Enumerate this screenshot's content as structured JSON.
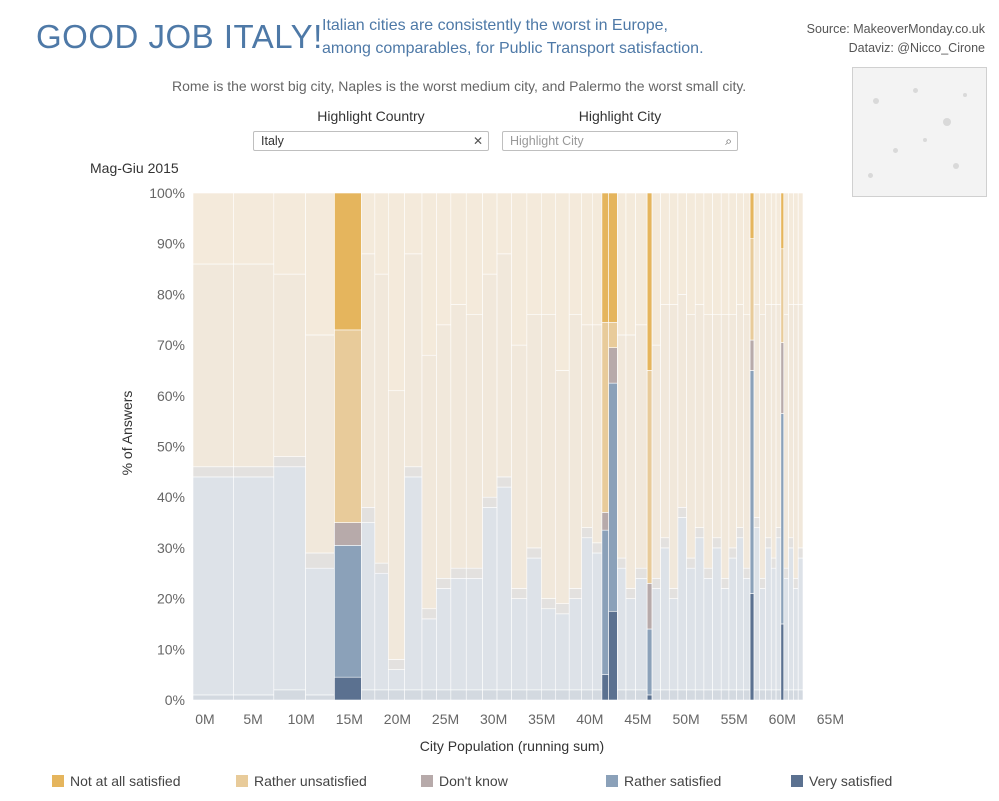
{
  "header": {
    "title": "GOOD JOB ITALY!",
    "subtitle_line1": "Italian cities are consistently the worst in Europe,",
    "subtitle_line2": "among comparables, for Public Transport satisfaction.",
    "source_line1": "Source: MakeoverMonday.co.uk",
    "source_line2": "Dataviz: @Nicco_Cirone",
    "description": "Rome is the worst big city, Naples is the worst medium city, and Palermo the worst small city."
  },
  "filters": {
    "country": {
      "label": "Highlight Country",
      "value": "Italy",
      "clear_icon": "close-icon"
    },
    "city": {
      "label": "Highlight City",
      "placeholder": "Highlight City",
      "search_icon": "search-icon"
    }
  },
  "period_label": "Mag-Giu 2015",
  "colors": {
    "not_at_all": "#e5b55d",
    "rather_unsatisfied": "#e8cb9a",
    "dont_know": "#b7aaaa",
    "rather_satisfied": "#8ba1b9",
    "very_satisfied": "#5b7190"
  },
  "legend": [
    {
      "label": "Not at all satisfied",
      "color": "#e5b55d"
    },
    {
      "label": "Rather unsatisfied",
      "color": "#e8cb9a"
    },
    {
      "label": "Don't know",
      "color": "#b7aaaa"
    },
    {
      "label": "Rather satisfied",
      "color": "#8ba1b9"
    },
    {
      "label": "Very satisfied",
      "color": "#5b7190"
    }
  ],
  "chart_data": {
    "type": "bar",
    "subtype": "marimekko",
    "xlabel": "City Population (running sum)",
    "ylabel": "% of Answers",
    "xlim": [
      0,
      65000000
    ],
    "ylim": [
      0,
      100
    ],
    "x_ticks": [
      "0M",
      "5M",
      "10M",
      "15M",
      "20M",
      "25M",
      "30M",
      "35M",
      "40M",
      "45M",
      "50M",
      "55M",
      "60M",
      "65M"
    ],
    "y_ticks": [
      "0%",
      "10%",
      "20%",
      "30%",
      "40%",
      "50%",
      "60%",
      "70%",
      "80%",
      "90%",
      "100%"
    ],
    "highlight_country": "Italy",
    "highlighted_bars": [
      {
        "x_start": 14.7,
        "x_end": 17.5,
        "very": 4.5,
        "rather_sat": 26.0,
        "dont_know": 4.5,
        "rather_unsat": 38.0,
        "not_at_all": 27.0
      },
      {
        "x_start": 42.5,
        "x_end": 43.2,
        "very": 5.0,
        "rather_sat": 28.5,
        "dont_know": 3.5,
        "rather_unsat": 37.5,
        "not_at_all": 25.5
      },
      {
        "x_start": 43.2,
        "x_end": 44.1,
        "very": 17.5,
        "rather_sat": 45.0,
        "dont_know": 7.0,
        "rather_unsat": 5.0,
        "not_at_all": 25.5
      },
      {
        "x_start": 47.2,
        "x_end": 47.7,
        "very": 1.0,
        "rather_sat": 13.0,
        "dont_know": 9.0,
        "rather_unsat": 42.0,
        "not_at_all": 35.0
      },
      {
        "x_start": 57.9,
        "x_end": 58.3,
        "very": 21.0,
        "rather_sat": 44.0,
        "dont_know": 6.0,
        "rather_unsat": 20.0,
        "not_at_all": 9.0
      },
      {
        "x_start": 61.1,
        "x_end": 61.4,
        "very": 15.0,
        "rather_sat": 41.5,
        "dont_know": 14.0,
        "rather_unsat": 18.5,
        "not_at_all": 11.0
      }
    ],
    "background_bars": [
      {
        "x_start": 0.0,
        "x_end": 4.2,
        "very": 1,
        "rather_sat": 43,
        "dont_know": 2,
        "rather_unsat": 40,
        "not_at_all": 14
      },
      {
        "x_start": 4.2,
        "x_end": 8.4,
        "very": 1,
        "rather_sat": 43,
        "dont_know": 2,
        "rather_unsat": 40,
        "not_at_all": 14
      },
      {
        "x_start": 8.4,
        "x_end": 11.7,
        "very": 2,
        "rather_sat": 44,
        "dont_know": 2,
        "rather_unsat": 36,
        "not_at_all": 16
      },
      {
        "x_start": 11.7,
        "x_end": 14.7,
        "very": 1,
        "rather_sat": 25,
        "dont_know": 3,
        "rather_unsat": 43,
        "not_at_all": 28
      },
      {
        "x_start": 17.5,
        "x_end": 18.9,
        "very": 2,
        "rather_sat": 33,
        "dont_know": 3,
        "rather_unsat": 50,
        "not_at_all": 12
      },
      {
        "x_start": 18.9,
        "x_end": 20.3,
        "very": 2,
        "rather_sat": 23,
        "dont_know": 2,
        "rather_unsat": 57,
        "not_at_all": 16
      },
      {
        "x_start": 20.3,
        "x_end": 22.0,
        "very": 2,
        "rather_sat": 4,
        "dont_know": 2,
        "rather_unsat": 53,
        "not_at_all": 39
      },
      {
        "x_start": 22.0,
        "x_end": 23.8,
        "very": 2,
        "rather_sat": 42,
        "dont_know": 2,
        "rather_unsat": 42,
        "not_at_all": 12
      },
      {
        "x_start": 23.8,
        "x_end": 25.3,
        "very": 2,
        "rather_sat": 14,
        "dont_know": 2,
        "rather_unsat": 50,
        "not_at_all": 32
      },
      {
        "x_start": 25.3,
        "x_end": 26.8,
        "very": 2,
        "rather_sat": 20,
        "dont_know": 2,
        "rather_unsat": 50,
        "not_at_all": 26
      },
      {
        "x_start": 26.8,
        "x_end": 28.4,
        "very": 2,
        "rather_sat": 22,
        "dont_know": 2,
        "rather_unsat": 52,
        "not_at_all": 22
      },
      {
        "x_start": 28.4,
        "x_end": 30.1,
        "very": 2,
        "rather_sat": 22,
        "dont_know": 2,
        "rather_unsat": 50,
        "not_at_all": 24
      },
      {
        "x_start": 30.1,
        "x_end": 31.6,
        "very": 2,
        "rather_sat": 36,
        "dont_know": 2,
        "rather_unsat": 44,
        "not_at_all": 16
      },
      {
        "x_start": 31.6,
        "x_end": 33.1,
        "very": 2,
        "rather_sat": 40,
        "dont_know": 2,
        "rather_unsat": 44,
        "not_at_all": 12
      },
      {
        "x_start": 33.1,
        "x_end": 34.7,
        "very": 2,
        "rather_sat": 18,
        "dont_know": 2,
        "rather_unsat": 48,
        "not_at_all": 30
      },
      {
        "x_start": 34.7,
        "x_end": 36.2,
        "very": 2,
        "rather_sat": 26,
        "dont_know": 2,
        "rather_unsat": 46,
        "not_at_all": 24
      },
      {
        "x_start": 36.2,
        "x_end": 37.7,
        "very": 2,
        "rather_sat": 16,
        "dont_know": 2,
        "rather_unsat": 56,
        "not_at_all": 24
      },
      {
        "x_start": 37.7,
        "x_end": 39.1,
        "very": 2,
        "rather_sat": 15,
        "dont_know": 2,
        "rather_unsat": 46,
        "not_at_all": 35
      },
      {
        "x_start": 39.1,
        "x_end": 40.4,
        "very": 2,
        "rather_sat": 18,
        "dont_know": 2,
        "rather_unsat": 54,
        "not_at_all": 24
      },
      {
        "x_start": 40.4,
        "x_end": 41.5,
        "very": 2,
        "rather_sat": 30,
        "dont_know": 2,
        "rather_unsat": 40,
        "not_at_all": 26
      },
      {
        "x_start": 41.5,
        "x_end": 42.5,
        "very": 2,
        "rather_sat": 27,
        "dont_know": 2,
        "rather_unsat": 43,
        "not_at_all": 26
      },
      {
        "x_start": 44.1,
        "x_end": 45.0,
        "very": 2,
        "rather_sat": 24,
        "dont_know": 2,
        "rather_unsat": 44,
        "not_at_all": 28
      },
      {
        "x_start": 45.0,
        "x_end": 46.0,
        "very": 2,
        "rather_sat": 18,
        "dont_know": 2,
        "rather_unsat": 50,
        "not_at_all": 28
      },
      {
        "x_start": 46.0,
        "x_end": 47.2,
        "very": 2,
        "rather_sat": 22,
        "dont_know": 2,
        "rather_unsat": 48,
        "not_at_all": 26
      },
      {
        "x_start": 47.7,
        "x_end": 48.6,
        "very": 2,
        "rather_sat": 20,
        "dont_know": 2,
        "rather_unsat": 46,
        "not_at_all": 30
      },
      {
        "x_start": 48.6,
        "x_end": 49.5,
        "very": 2,
        "rather_sat": 28,
        "dont_know": 2,
        "rather_unsat": 46,
        "not_at_all": 22
      },
      {
        "x_start": 49.5,
        "x_end": 50.4,
        "very": 2,
        "rather_sat": 18,
        "dont_know": 2,
        "rather_unsat": 56,
        "not_at_all": 22
      },
      {
        "x_start": 50.4,
        "x_end": 51.3,
        "very": 2,
        "rather_sat": 34,
        "dont_know": 2,
        "rather_unsat": 42,
        "not_at_all": 20
      },
      {
        "x_start": 51.3,
        "x_end": 52.2,
        "very": 2,
        "rather_sat": 24,
        "dont_know": 2,
        "rather_unsat": 48,
        "not_at_all": 24
      },
      {
        "x_start": 52.2,
        "x_end": 53.1,
        "very": 2,
        "rather_sat": 30,
        "dont_know": 2,
        "rather_unsat": 44,
        "not_at_all": 22
      },
      {
        "x_start": 53.1,
        "x_end": 54.0,
        "very": 2,
        "rather_sat": 22,
        "dont_know": 2,
        "rather_unsat": 50,
        "not_at_all": 24
      },
      {
        "x_start": 54.0,
        "x_end": 54.9,
        "very": 2,
        "rather_sat": 28,
        "dont_know": 2,
        "rather_unsat": 44,
        "not_at_all": 24
      },
      {
        "x_start": 54.9,
        "x_end": 55.7,
        "very": 2,
        "rather_sat": 20,
        "dont_know": 2,
        "rather_unsat": 52,
        "not_at_all": 24
      },
      {
        "x_start": 55.7,
        "x_end": 56.5,
        "very": 2,
        "rather_sat": 26,
        "dont_know": 2,
        "rather_unsat": 46,
        "not_at_all": 24
      },
      {
        "x_start": 56.5,
        "x_end": 57.2,
        "very": 2,
        "rather_sat": 30,
        "dont_know": 2,
        "rather_unsat": 44,
        "not_at_all": 22
      },
      {
        "x_start": 57.2,
        "x_end": 57.9,
        "very": 2,
        "rather_sat": 22,
        "dont_know": 2,
        "rather_unsat": 50,
        "not_at_all": 24
      },
      {
        "x_start": 58.3,
        "x_end": 58.9,
        "very": 2,
        "rather_sat": 32,
        "dont_know": 2,
        "rather_unsat": 42,
        "not_at_all": 22
      },
      {
        "x_start": 58.9,
        "x_end": 59.5,
        "very": 2,
        "rather_sat": 20,
        "dont_know": 2,
        "rather_unsat": 52,
        "not_at_all": 24
      },
      {
        "x_start": 59.5,
        "x_end": 60.1,
        "very": 2,
        "rather_sat": 28,
        "dont_know": 2,
        "rather_unsat": 46,
        "not_at_all": 22
      },
      {
        "x_start": 60.1,
        "x_end": 60.6,
        "very": 2,
        "rather_sat": 24,
        "dont_know": 2,
        "rather_unsat": 50,
        "not_at_all": 22
      },
      {
        "x_start": 60.6,
        "x_end": 61.1,
        "very": 2,
        "rather_sat": 30,
        "dont_know": 2,
        "rather_unsat": 44,
        "not_at_all": 22
      },
      {
        "x_start": 61.4,
        "x_end": 61.9,
        "very": 2,
        "rather_sat": 22,
        "dont_know": 2,
        "rather_unsat": 50,
        "not_at_all": 24
      },
      {
        "x_start": 61.9,
        "x_end": 62.4,
        "very": 2,
        "rather_sat": 28,
        "dont_know": 2,
        "rather_unsat": 46,
        "not_at_all": 22
      },
      {
        "x_start": 62.4,
        "x_end": 62.9,
        "very": 2,
        "rather_sat": 20,
        "dont_know": 2,
        "rather_unsat": 54,
        "not_at_all": 22
      },
      {
        "x_start": 62.9,
        "x_end": 63.4,
        "very": 2,
        "rather_sat": 26,
        "dont_know": 2,
        "rather_unsat": 48,
        "not_at_all": 22
      }
    ]
  }
}
